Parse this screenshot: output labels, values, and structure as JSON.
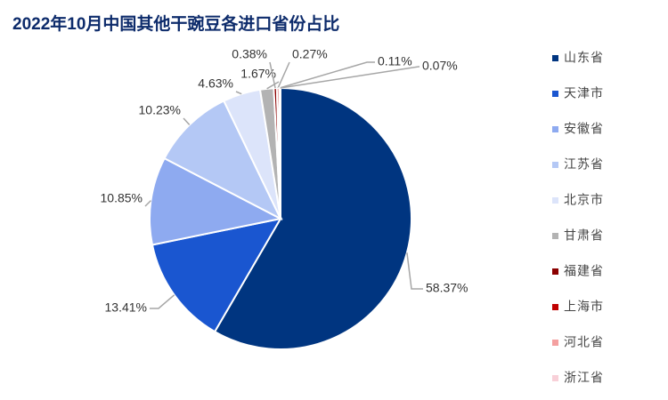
{
  "chart_data": {
    "type": "pie",
    "title": "2022年10月中国其他干豌豆各进口省份占比",
    "categories": [
      "山东省",
      "天津市",
      "安徽省",
      "江苏省",
      "北京市",
      "甘肃省",
      "福建省",
      "上海市",
      "河北省",
      "浙江省"
    ],
    "values": [
      58.37,
      13.41,
      10.85,
      10.23,
      4.63,
      1.67,
      0.38,
      0.27,
      0.11,
      0.07
    ],
    "value_labels": [
      "58.37%",
      "13.41%",
      "10.85%",
      "10.23%",
      "4.63%",
      "1.67%",
      "0.38%",
      "0.27%",
      "0.11%",
      "0.07%"
    ],
    "colors": [
      "#003580",
      "#1a56d0",
      "#8eaaf0",
      "#b4c8f5",
      "#dce4fa",
      "#b3b3b3",
      "#8b0000",
      "#c00000",
      "#f4a0a0",
      "#f8d0d8"
    ],
    "legend": "right"
  }
}
